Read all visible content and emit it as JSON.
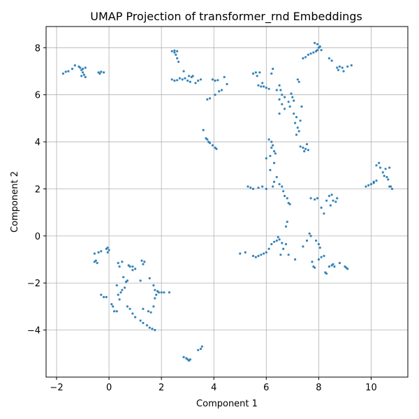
{
  "chart_data": {
    "type": "scatter",
    "title": "UMAP Projection of transformer_rnd Embeddings",
    "xlabel": "Component 1",
    "ylabel": "Component 2",
    "xlim": [
      -2.4,
      11.4
    ],
    "ylim": [
      -6.0,
      8.9
    ],
    "xticks": [
      -2,
      0,
      2,
      4,
      6,
      8,
      10
    ],
    "yticks": [
      -4,
      -2,
      0,
      2,
      4,
      6,
      8
    ],
    "xtick_labels": [
      "−2",
      "0",
      "2",
      "4",
      "6",
      "8",
      "10"
    ],
    "ytick_labels": [
      "−4",
      "−2",
      "0",
      "2",
      "4",
      "6",
      "8"
    ],
    "grid": true,
    "marker_color": "#1f77b4",
    "points": [
      [
        -1.75,
        6.9
      ],
      [
        -1.65,
        6.98
      ],
      [
        -1.55,
        7.0
      ],
      [
        -1.4,
        7.1
      ],
      [
        -1.3,
        7.25
      ],
      [
        -1.15,
        7.2
      ],
      [
        -1.1,
        7.15
      ],
      [
        -1.05,
        7.05
      ],
      [
        -1.0,
        6.95
      ],
      [
        -0.95,
        6.85
      ],
      [
        -0.9,
        6.75
      ],
      [
        -1.0,
        7.1
      ],
      [
        -0.9,
        7.15
      ],
      [
        -1.05,
        6.8
      ],
      [
        -0.4,
        6.95
      ],
      [
        -0.35,
        6.9
      ],
      [
        -0.3,
        6.98
      ],
      [
        -0.2,
        6.95
      ],
      [
        2.4,
        7.85
      ],
      [
        2.5,
        7.8
      ],
      [
        2.6,
        7.85
      ],
      [
        2.55,
        7.7
      ],
      [
        2.6,
        7.55
      ],
      [
        2.65,
        7.4
      ],
      [
        2.5,
        7.88
      ],
      [
        2.4,
        6.65
      ],
      [
        2.5,
        6.6
      ],
      [
        2.6,
        6.62
      ],
      [
        2.7,
        6.7
      ],
      [
        2.8,
        6.65
      ],
      [
        2.9,
        6.7
      ],
      [
        3.0,
        6.6
      ],
      [
        3.1,
        6.55
      ],
      [
        3.15,
        6.75
      ],
      [
        3.2,
        6.8
      ],
      [
        3.3,
        6.5
      ],
      [
        3.4,
        6.6
      ],
      [
        3.5,
        6.65
      ],
      [
        2.85,
        7.0
      ],
      [
        3.05,
        6.8
      ],
      [
        3.95,
        6.65
      ],
      [
        4.05,
        6.6
      ],
      [
        4.15,
        6.62
      ],
      [
        4.2,
        6.15
      ],
      [
        4.3,
        6.2
      ],
      [
        4.4,
        6.75
      ],
      [
        4.5,
        6.45
      ],
      [
        4.05,
        6.0
      ],
      [
        3.85,
        5.85
      ],
      [
        3.75,
        5.8
      ],
      [
        3.6,
        4.5
      ],
      [
        3.7,
        4.15
      ],
      [
        3.8,
        4.0
      ],
      [
        3.85,
        3.95
      ],
      [
        3.95,
        3.85
      ],
      [
        4.05,
        3.75
      ],
      [
        4.1,
        3.7
      ],
      [
        3.75,
        4.1
      ],
      [
        5.5,
        6.9
      ],
      [
        5.6,
        6.95
      ],
      [
        5.65,
        6.8
      ],
      [
        5.75,
        6.95
      ],
      [
        5.7,
        6.4
      ],
      [
        5.8,
        6.35
      ],
      [
        5.9,
        6.35
      ],
      [
        6.0,
        6.3
      ],
      [
        6.1,
        6.25
      ],
      [
        6.25,
        7.1
      ],
      [
        5.85,
        6.5
      ],
      [
        6.4,
        6.2
      ],
      [
        6.5,
        6.4
      ],
      [
        6.55,
        6.2
      ],
      [
        6.6,
        6.0
      ],
      [
        6.5,
        5.8
      ],
      [
        6.7,
        5.9
      ],
      [
        6.6,
        5.6
      ],
      [
        6.7,
        5.4
      ],
      [
        6.85,
        5.7
      ],
      [
        6.9,
        5.5
      ],
      [
        6.95,
        6.05
      ],
      [
        7.0,
        5.9
      ],
      [
        7.05,
        5.75
      ],
      [
        6.5,
        5.2
      ],
      [
        7.05,
        5.2
      ],
      [
        7.15,
        5.05
      ],
      [
        7.1,
        4.8
      ],
      [
        7.2,
        4.6
      ],
      [
        7.25,
        4.45
      ],
      [
        7.15,
        4.3
      ],
      [
        7.3,
        4.9
      ],
      [
        7.35,
        5.5
      ],
      [
        7.3,
        3.8
      ],
      [
        7.4,
        3.75
      ],
      [
        7.5,
        3.7
      ],
      [
        7.6,
        3.65
      ],
      [
        7.55,
        3.9
      ],
      [
        7.45,
        3.6
      ],
      [
        6.2,
        6.9
      ],
      [
        7.2,
        6.65
      ],
      [
        7.25,
        6.55
      ],
      [
        7.4,
        7.55
      ],
      [
        7.5,
        7.6
      ],
      [
        7.6,
        7.7
      ],
      [
        7.7,
        7.75
      ],
      [
        7.8,
        7.8
      ],
      [
        7.9,
        7.85
      ],
      [
        7.95,
        7.9
      ],
      [
        8.0,
        8.0
      ],
      [
        8.1,
        7.9
      ],
      [
        7.85,
        8.2
      ],
      [
        7.95,
        8.15
      ],
      [
        8.05,
        8.05
      ],
      [
        8.4,
        7.55
      ],
      [
        8.5,
        7.45
      ],
      [
        8.7,
        7.15
      ],
      [
        8.8,
        7.2
      ],
      [
        8.9,
        7.15
      ],
      [
        8.75,
        7.05
      ],
      [
        8.95,
        7.0
      ],
      [
        9.1,
        7.2
      ],
      [
        9.25,
        7.25
      ],
      [
        6.1,
        4.1
      ],
      [
        6.2,
        4.0
      ],
      [
        6.25,
        3.85
      ],
      [
        6.2,
        3.75
      ],
      [
        6.3,
        3.6
      ],
      [
        6.35,
        3.5
      ],
      [
        6.15,
        3.4
      ],
      [
        6.0,
        3.3
      ],
      [
        6.3,
        3.1
      ],
      [
        5.3,
        2.1
      ],
      [
        5.4,
        2.05
      ],
      [
        5.5,
        2.0
      ],
      [
        5.7,
        2.05
      ],
      [
        5.85,
        2.1
      ],
      [
        6.0,
        2.0
      ],
      [
        6.15,
        2.8
      ],
      [
        6.3,
        2.3
      ],
      [
        6.4,
        2.5
      ],
      [
        6.5,
        2.2
      ],
      [
        6.6,
        2.1
      ],
      [
        6.65,
        1.9
      ],
      [
        6.7,
        1.7
      ],
      [
        6.8,
        1.6
      ],
      [
        6.85,
        1.4
      ],
      [
        6.9,
        1.35
      ],
      [
        6.25,
        2.1
      ],
      [
        6.8,
        0.6
      ],
      [
        6.75,
        0.4
      ],
      [
        7.7,
        1.6
      ],
      [
        7.85,
        1.55
      ],
      [
        7.95,
        1.6
      ],
      [
        8.1,
        1.2
      ],
      [
        8.3,
        1.5
      ],
      [
        8.4,
        1.7
      ],
      [
        8.5,
        1.75
      ],
      [
        8.45,
        1.3
      ],
      [
        8.55,
        1.5
      ],
      [
        8.7,
        1.6
      ],
      [
        8.65,
        1.45
      ],
      [
        8.2,
        0.95
      ],
      [
        9.8,
        2.1
      ],
      [
        9.9,
        2.15
      ],
      [
        10.0,
        2.2
      ],
      [
        10.1,
        2.3
      ],
      [
        10.2,
        2.35
      ],
      [
        10.1,
        2.25
      ],
      [
        10.2,
        3.0
      ],
      [
        10.3,
        3.1
      ],
      [
        10.35,
        2.9
      ],
      [
        10.45,
        2.7
      ],
      [
        10.5,
        2.55
      ],
      [
        10.6,
        2.5
      ],
      [
        10.65,
        2.4
      ],
      [
        10.55,
        2.85
      ],
      [
        10.7,
        2.9
      ],
      [
        10.75,
        2.1
      ],
      [
        10.8,
        2.0
      ],
      [
        10.7,
        2.1
      ],
      [
        -0.55,
        -1.1
      ],
      [
        -0.5,
        -1.05
      ],
      [
        -0.45,
        -1.15
      ],
      [
        -0.55,
        -0.75
      ],
      [
        -0.4,
        -0.7
      ],
      [
        -0.3,
        -0.65
      ],
      [
        -0.1,
        -0.55
      ],
      [
        -0.05,
        -0.5
      ],
      [
        0.0,
        -0.6
      ],
      [
        -0.05,
        -0.7
      ],
      [
        -0.3,
        -2.5
      ],
      [
        -0.2,
        -2.6
      ],
      [
        -0.1,
        -2.6
      ],
      [
        0.1,
        -2.9
      ],
      [
        0.15,
        -3.0
      ],
      [
        0.2,
        -3.2
      ],
      [
        0.3,
        -3.2
      ],
      [
        0.35,
        -2.5
      ],
      [
        0.45,
        -2.4
      ],
      [
        0.5,
        -2.3
      ],
      [
        0.6,
        -2.2
      ],
      [
        0.4,
        -2.7
      ],
      [
        0.3,
        -2.1
      ],
      [
        0.35,
        -1.15
      ],
      [
        0.4,
        -1.3
      ],
      [
        0.5,
        -1.1
      ],
      [
        0.55,
        -1.75
      ],
      [
        0.65,
        -1.95
      ],
      [
        0.7,
        -1.9
      ],
      [
        0.75,
        -1.25
      ],
      [
        0.8,
        -1.3
      ],
      [
        0.9,
        -1.45
      ],
      [
        1.0,
        -1.4
      ],
      [
        0.9,
        -1.3
      ],
      [
        0.7,
        -3.0
      ],
      [
        0.8,
        -3.1
      ],
      [
        0.9,
        -3.3
      ],
      [
        1.0,
        -3.45
      ],
      [
        1.2,
        -3.6
      ],
      [
        1.3,
        -3.7
      ],
      [
        1.45,
        -3.8
      ],
      [
        1.55,
        -3.9
      ],
      [
        1.65,
        -3.95
      ],
      [
        1.75,
        -4.0
      ],
      [
        1.3,
        -3.1
      ],
      [
        1.5,
        -3.2
      ],
      [
        1.6,
        -3.25
      ],
      [
        1.7,
        -3.0
      ],
      [
        1.2,
        -1.9
      ],
      [
        1.3,
        -1.2
      ],
      [
        1.35,
        -1.1
      ],
      [
        1.25,
        -1.05
      ],
      [
        1.55,
        -1.8
      ],
      [
        1.7,
        -2.1
      ],
      [
        1.75,
        -2.3
      ],
      [
        1.8,
        -2.5
      ],
      [
        1.85,
        -2.35
      ],
      [
        1.9,
        -2.4
      ],
      [
        2.0,
        -2.4
      ],
      [
        2.1,
        -2.4
      ],
      [
        2.3,
        -2.4
      ],
      [
        1.75,
        -2.65
      ],
      [
        2.85,
        -5.15
      ],
      [
        2.95,
        -5.2
      ],
      [
        3.0,
        -5.25
      ],
      [
        3.05,
        -5.3
      ],
      [
        3.1,
        -5.25
      ],
      [
        3.4,
        -4.85
      ],
      [
        3.5,
        -4.8
      ],
      [
        3.55,
        -4.7
      ],
      [
        5.0,
        -0.75
      ],
      [
        5.2,
        -0.7
      ],
      [
        5.5,
        -0.85
      ],
      [
        5.6,
        -0.9
      ],
      [
        5.7,
        -0.85
      ],
      [
        5.8,
        -0.8
      ],
      [
        5.9,
        -0.75
      ],
      [
        6.0,
        -0.7
      ],
      [
        6.1,
        -0.55
      ],
      [
        6.2,
        -0.35
      ],
      [
        6.3,
        -0.25
      ],
      [
        6.4,
        -0.2
      ],
      [
        6.5,
        -0.15
      ],
      [
        6.45,
        -0.05
      ],
      [
        6.6,
        -0.3
      ],
      [
        6.65,
        -0.55
      ],
      [
        6.75,
        -0.35
      ],
      [
        6.85,
        -0.8
      ],
      [
        7.1,
        -1.0
      ],
      [
        6.55,
        -0.8
      ],
      [
        7.4,
        -0.45
      ],
      [
        7.55,
        -0.2
      ],
      [
        7.65,
        0.1
      ],
      [
        7.7,
        0.0
      ],
      [
        7.75,
        -1.1
      ],
      [
        7.8,
        -1.3
      ],
      [
        7.85,
        -1.35
      ],
      [
        7.9,
        -0.2
      ],
      [
        8.0,
        -0.35
      ],
      [
        8.05,
        -0.5
      ],
      [
        8.1,
        -0.9
      ],
      [
        8.2,
        -0.85
      ],
      [
        8.0,
        -1.0
      ],
      [
        8.25,
        -1.55
      ],
      [
        8.3,
        -1.6
      ],
      [
        8.4,
        -1.3
      ],
      [
        8.5,
        -1.25
      ],
      [
        8.55,
        -1.2
      ],
      [
        8.6,
        -1.3
      ],
      [
        8.8,
        -1.15
      ],
      [
        9.0,
        -1.3
      ],
      [
        9.05,
        -1.35
      ],
      [
        9.1,
        -1.4
      ]
    ]
  }
}
